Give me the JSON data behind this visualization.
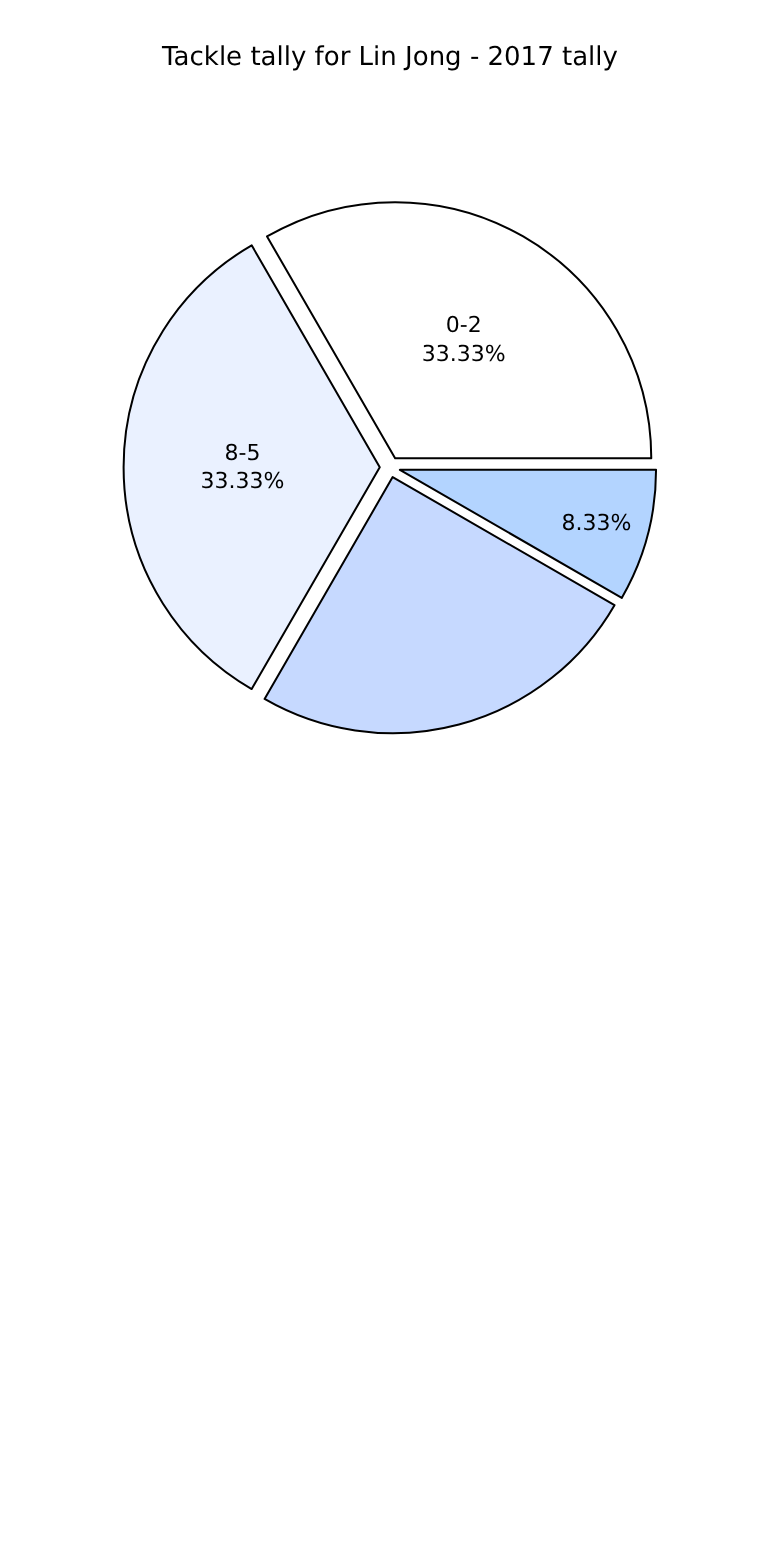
{
  "chart_data": {
    "type": "pie",
    "title": "Tackle tally for Lin Jong - 2017 tally",
    "categories": [
      "0-2",
      "8-5",
      null,
      null
    ],
    "values": [
      33.33,
      33.33,
      25,
      8.33
    ],
    "value_labels": [
      "33.33%",
      "33.33%",
      null,
      "8.33%"
    ],
    "colors": [
      "#ffffff",
      "#eaf1ff",
      "#c6d9ff",
      "#b3d4ff"
    ],
    "legend": false
  }
}
